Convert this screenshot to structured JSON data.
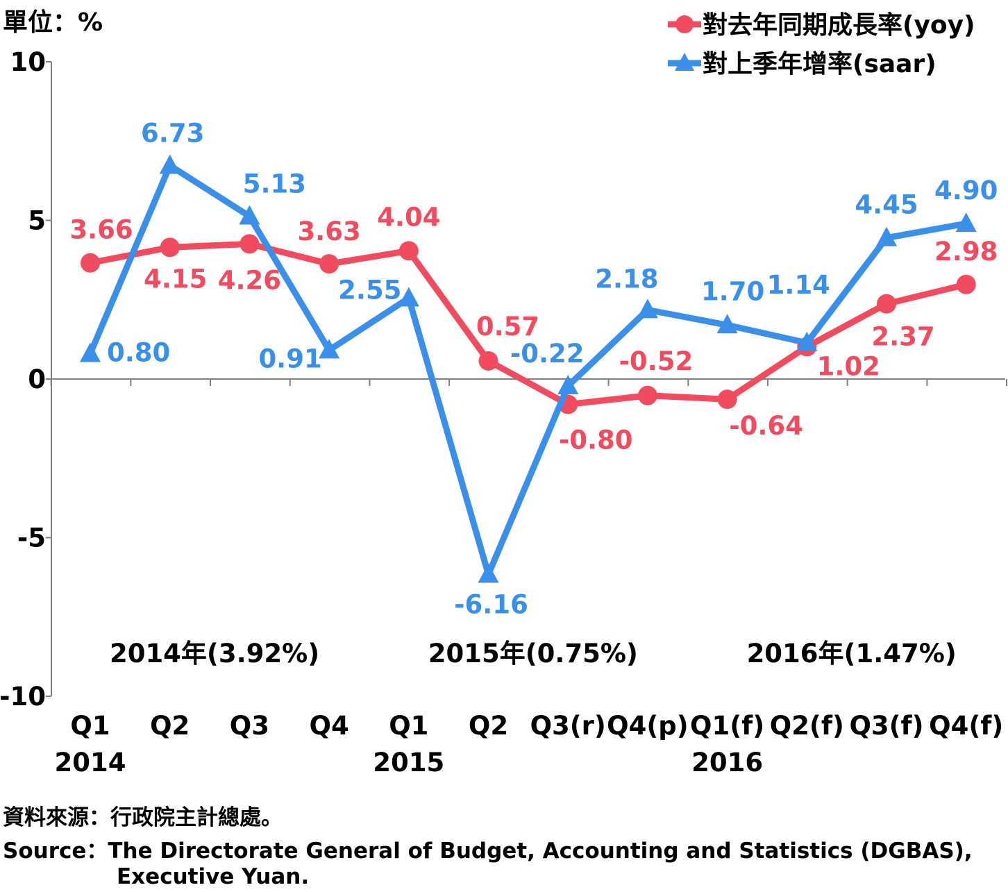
{
  "chart_data": {
    "type": "line",
    "unit_label": "單位：%",
    "categories": [
      "Q1",
      "Q2",
      "Q3",
      "Q4",
      "Q1",
      "Q2",
      "Q3(r)",
      "Q4(p)",
      "Q1(f)",
      "Q2(f)",
      "Q3(f)",
      "Q4(f)"
    ],
    "year_labels": [
      {
        "index": 0,
        "label": "2014"
      },
      {
        "index": 4,
        "label": "2015"
      },
      {
        "index": 8,
        "label": "2016"
      }
    ],
    "annual_notes": [
      {
        "center": 1.5,
        "label": "2014年(3.92%)"
      },
      {
        "center": 5.5,
        "label": "2015年(0.75%)"
      },
      {
        "center": 9.5,
        "label": "2016年(1.47%)"
      }
    ],
    "ylim": [
      -10,
      10
    ],
    "yticks": [
      "10",
      "5",
      "0",
      "-5",
      "-10"
    ],
    "series": [
      {
        "name": "對去年同期成長率(yoy)",
        "color": "#f04b5f",
        "marker": "circle",
        "values": [
          3.66,
          4.15,
          4.26,
          3.63,
          4.04,
          0.57,
          -0.8,
          -0.52,
          -0.64,
          1.02,
          2.37,
          2.98
        ],
        "labels": [
          "3.66",
          "4.15",
          "4.26",
          "3.63",
          "4.04",
          "0.57",
          "-0.80",
          "-0.52",
          "-0.64",
          "1.02",
          "2.37",
          "2.98"
        ]
      },
      {
        "name": "對上季年增率(saar)",
        "color": "#3a8fe8",
        "marker": "triangle",
        "values": [
          0.8,
          6.73,
          5.13,
          0.91,
          2.55,
          -6.16,
          -0.22,
          2.18,
          1.7,
          1.14,
          4.45,
          4.9
        ],
        "labels": [
          "0.80",
          "6.73",
          "5.13",
          "0.91",
          "2.55",
          "-6.16",
          "-0.22",
          "2.18",
          "1.70",
          "1.14",
          "4.45",
          "4.90"
        ]
      }
    ],
    "grid": false,
    "legend_position": "top-right"
  },
  "source": {
    "zh": "資料來源：行政院主計總處。",
    "en_line1": "Source：The Directorate General of Budget, Accounting and Statistics (DGBAS),",
    "en_line2": "Executive Yuan."
  }
}
